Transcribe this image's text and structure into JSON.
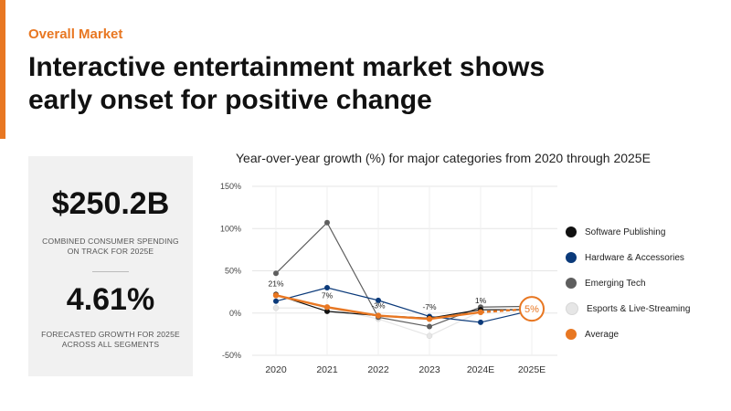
{
  "colors": {
    "accent": "#E87722",
    "software": "#111111",
    "hardware": "#0B3A7A",
    "emerging": "#5E5E5E",
    "esports": "#E6E6E6",
    "average": "#E87722"
  },
  "header": {
    "section_label": "Overall Market",
    "headline": "Interactive entertainment market shows early onset for positive change"
  },
  "stats": {
    "primary_value": "$250.2B",
    "primary_caption": "COMBINED CONSUMER SPENDING ON TRACK FOR 2025E",
    "secondary_value": "4.61%",
    "secondary_caption": "FORECASTED GROWTH FOR 2025E ACROSS ALL SEGMENTS"
  },
  "chart_data": {
    "type": "line",
    "title": "Year-over-year growth (%) for major categories from 2020 through 2025E",
    "categories": [
      "2020",
      "2021",
      "2022",
      "2023",
      "2024E",
      "2025E"
    ],
    "ylim": [
      -50,
      150
    ],
    "yticks": [
      -50,
      0,
      50,
      100,
      150
    ],
    "ytick_labels": [
      "-50%",
      "0%",
      "50%",
      "100%",
      "150%"
    ],
    "grid": true,
    "legend_position": "right",
    "series": [
      {
        "name": "Software Publishing",
        "key": "software",
        "values": [
          22,
          2,
          -3,
          -6,
          4,
          4
        ]
      },
      {
        "name": "Hardware & Accessories",
        "key": "hardware",
        "values": [
          14,
          30,
          15,
          -4,
          -11,
          3
        ]
      },
      {
        "name": "Emerging Tech",
        "key": "emerging",
        "values": [
          47,
          107,
          -5,
          -16,
          7,
          8
        ]
      },
      {
        "name": "Esports & Live-Streaming",
        "key": "esports",
        "values": [
          6,
          6,
          -7,
          -27,
          2,
          4
        ]
      },
      {
        "name": "Average",
        "key": "average",
        "values": [
          21,
          7,
          -3,
          -7,
          1,
          5
        ]
      }
    ],
    "annotations": [
      "21%",
      "7%",
      "-3%",
      "-7%",
      "1%",
      "5%"
    ]
  }
}
